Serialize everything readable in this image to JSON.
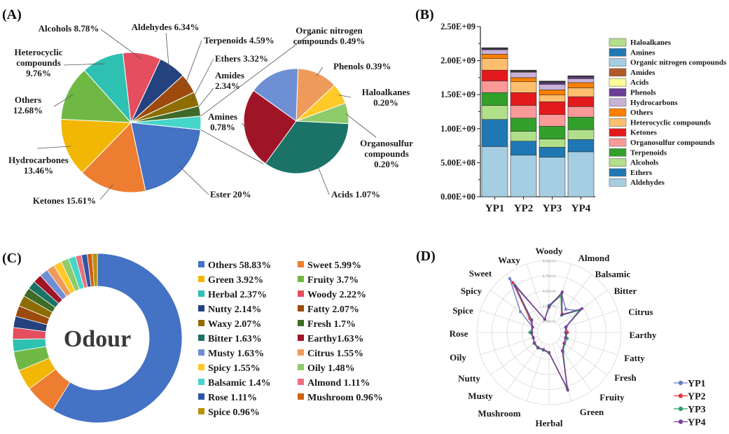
{
  "chart_data": [
    {
      "panel": "(A)",
      "type": "pie",
      "subtype": "bar-of-pie",
      "title": "",
      "main_slices": [
        {
          "name": "Ester",
          "label": "Ester 20%",
          "value": 20.0,
          "color": "#4472C4"
        },
        {
          "name": "Ketones",
          "label": "Ketones 15.61%",
          "value": 15.61,
          "color": "#ED7D31"
        },
        {
          "name": "Hydrocarbones",
          "label": "Hydrocarbones\n13.46%",
          "value": 13.46,
          "color": "#F2B705"
        },
        {
          "name": "Others",
          "label": "Others\n12.68%",
          "value": 12.68,
          "color": "#70B844"
        },
        {
          "name": "Heterocyclic compounds",
          "label": "Heterocyclic\ncompounds\n9.76%",
          "value": 9.76,
          "color": "#2EC1B2"
        },
        {
          "name": "Alcohols",
          "label": "Alcohols 8.78%",
          "value": 8.78,
          "color": "#E44E5F"
        },
        {
          "name": "Aldehydes",
          "label": "Aldehydes 6.34%",
          "value": 6.34,
          "color": "#24427E"
        },
        {
          "name": "Terpenoids",
          "label": "Terpenoids 4.59%",
          "value": 4.59,
          "color": "#9C4A0E"
        },
        {
          "name": "Ethers",
          "label": "Ethers 3.32%",
          "value": 3.32,
          "color": "#8E6D00"
        },
        {
          "name": "Amides",
          "label": "Amides\n2.34%",
          "value": 2.34,
          "color": "#3E6B27"
        },
        {
          "name": "Other (expanded)",
          "label": "",
          "value": 3.13,
          "color": "#45D6C9"
        }
      ],
      "secondary_slices": [
        {
          "name": "Phenols",
          "label": "Phenols 0.39%",
          "value": 0.39,
          "color": "#EE9A5A"
        },
        {
          "name": "Haloalkanes",
          "label": "Haloalkanes\n0.20%",
          "value": 0.2,
          "color": "#FFC928"
        },
        {
          "name": "Organosulfur compounds",
          "label": "Organosulfur\ncompounds\n0.20%",
          "value": 0.2,
          "color": "#8FCB6A"
        },
        {
          "name": "Acids",
          "label": "Acids 1.07%",
          "value": 1.07,
          "color": "#1B7368"
        },
        {
          "name": "Amines",
          "label": "Amines\n0.78%",
          "value": 0.78,
          "color": "#A01428"
        },
        {
          "name": "Organic nitrogen compounds",
          "label": "Organic nitrogen\ncompounds 0.49%",
          "value": 0.49,
          "color": "#6E8FD4"
        }
      ]
    },
    {
      "panel": "(B)",
      "type": "bar",
      "stacked": true,
      "title": "",
      "xlabel": "",
      "ylabel": "",
      "categories": [
        "YP1",
        "YP2",
        "YP3",
        "YP4"
      ],
      "ylim": [
        0,
        2500000000
      ],
      "yticks": [
        "0.00E+00",
        "5.00E+08",
        "1.00E+09",
        "1.50E+09",
        "2.00E+09",
        "2.50E+09"
      ],
      "series": [
        {
          "name": "Aldehydes",
          "color": "#A6CEE3",
          "values": [
            737000000,
            610000000,
            580000000,
            660000000
          ]
        },
        {
          "name": "Ethers",
          "color": "#1F78B4",
          "values": [
            398000000,
            206000000,
            147000000,
            180000000
          ]
        },
        {
          "name": "Alcohols",
          "color": "#B2DF8A",
          "values": [
            205000000,
            144000000,
            120000000,
            145000000
          ]
        },
        {
          "name": "Terpenoids",
          "color": "#33A02C",
          "values": [
            190000000,
            195000000,
            189000000,
            185000000
          ]
        },
        {
          "name": "Organosulfur compounds",
          "color": "#FB9A99",
          "values": [
            170000000,
            185000000,
            171000000,
            154000000
          ]
        },
        {
          "name": "Ketones",
          "color": "#E31A1C",
          "values": [
            160000000,
            190000000,
            189000000,
            146000000
          ]
        },
        {
          "name": "Heterocyclic compounds",
          "color": "#FDBF6F",
          "values": [
            170000000,
            160000000,
            99000000,
            130000000
          ]
        },
        {
          "name": "Others",
          "color": "#FF7F00",
          "values": [
            65000000,
            60000000,
            75000000,
            77000000
          ]
        },
        {
          "name": "Hydrocarbons",
          "color": "#CAB2D6",
          "values": [
            65000000,
            80000000,
            80000000,
            58000000
          ]
        },
        {
          "name": "Phenols",
          "color": "#6A3D9A",
          "values": [
            12000000,
            8000000,
            27000000,
            25000000
          ]
        },
        {
          "name": "Acids",
          "color": "#FFFF99",
          "values": [
            4000000,
            6000000,
            4000000,
            4000000
          ]
        },
        {
          "name": "Amides",
          "color": "#B15928",
          "values": [
            4000000,
            6000000,
            4000000,
            4000000
          ]
        },
        {
          "name": "Organic nitrogen compounds",
          "color": "#A6CEE3",
          "values": [
            3000000,
            3000000,
            5000000,
            3000000
          ]
        },
        {
          "name": "Amines",
          "color": "#1F78B4",
          "values": [
            3000000,
            3000000,
            5000000,
            3000000
          ]
        },
        {
          "name": "Haloalkanes",
          "color": "#B2DF8A",
          "values": [
            4000000,
            4000000,
            5000000,
            3000000
          ]
        }
      ],
      "legend": [
        "Haloalkanes",
        "Amines",
        "Organic nitrogen compounds",
        "Amides",
        "Acids",
        "Phenols",
        "Hydrocarbons",
        "Others",
        "Heterocyclic compounds",
        "Ketones",
        "Organosulfur compounds",
        "Terpenoids",
        "Alcohols",
        "Ethers",
        "Aldehydes"
      ],
      "legend_position": "right"
    },
    {
      "panel": "(C)",
      "type": "pie",
      "subtype": "donut",
      "center_label": "Odour",
      "slices": [
        {
          "name": "Others",
          "label": "Others 58.83%",
          "value": 58.83,
          "color": "#4472C4"
        },
        {
          "name": "Sweet",
          "label": "Sweet 5.99%",
          "value": 5.99,
          "color": "#ED7D31"
        },
        {
          "name": "Green",
          "label": "Green 3.92%",
          "value": 3.92,
          "color": "#F2B705"
        },
        {
          "name": "Fruity",
          "label": "Fruity 3.7%",
          "value": 3.7,
          "color": "#70B844"
        },
        {
          "name": "Herbal",
          "label": "Herbal 2.37%",
          "value": 2.37,
          "color": "#2EC1B2"
        },
        {
          "name": "Woody",
          "label": "Woody 2.22%",
          "value": 2.22,
          "color": "#E44E5F"
        },
        {
          "name": "Nutty",
          "label": "Nutty 2.14%",
          "value": 2.14,
          "color": "#24427E"
        },
        {
          "name": "Fatty",
          "label": "Fatty 2.07%",
          "value": 2.07,
          "color": "#9C4A0E"
        },
        {
          "name": "Waxy",
          "label": "Waxy 2.07%",
          "value": 2.07,
          "color": "#8E6D00"
        },
        {
          "name": "Fresh",
          "label": "Fresh 1.7%",
          "value": 1.7,
          "color": "#3E6B27"
        },
        {
          "name": "Bitter",
          "label": "Bitter 1.63%",
          "value": 1.63,
          "color": "#1B7368"
        },
        {
          "name": "Earthy",
          "label": "Earthy1.63%",
          "value": 1.63,
          "color": "#A01428"
        },
        {
          "name": "Musty",
          "label": "Musty 1.63%",
          "value": 1.63,
          "color": "#6E8FD4"
        },
        {
          "name": "Citrus",
          "label": "Citrus 1.55%",
          "value": 1.55,
          "color": "#EE9A5A"
        },
        {
          "name": "Spicy",
          "label": "Spicy 1.55%",
          "value": 1.55,
          "color": "#FFC928"
        },
        {
          "name": "Oily",
          "label": "Oily 1.48%",
          "value": 1.48,
          "color": "#8FCB6A"
        },
        {
          "name": "Balsamic",
          "label": "Balsamic 1.4%",
          "value": 1.4,
          "color": "#45D6C9"
        },
        {
          "name": "Almond",
          "label": "Almond 1.11%",
          "value": 1.11,
          "color": "#E8717F"
        },
        {
          "name": "Rose",
          "label": "Rose 1.11%",
          "value": 1.11,
          "color": "#2F55A4"
        },
        {
          "name": "Mushroom",
          "label": "Mushroom 0.96%",
          "value": 0.96,
          "color": "#D06010"
        },
        {
          "name": "Spice",
          "label": "Spice 0.96%",
          "value": 0.96,
          "color": "#B8900A"
        }
      ],
      "legend_position": "right"
    },
    {
      "panel": "(D)",
      "type": "radar",
      "axes": [
        "Woody",
        "Almond",
        "Balsamic",
        "Bitter",
        "Citrus",
        "Earthy",
        "Fatty",
        "Fresh",
        "Fruity",
        "Green",
        "Herbal",
        "Mushroom",
        "Musty",
        "Nutty",
        "Oily",
        "Rose",
        "Spice",
        "Spicy",
        "Sweet",
        "Waxy"
      ],
      "rlim": [
        0,
        9.0
      ],
      "rticks": [
        "0.00e+0",
        "2.25e+0",
        "4.50e+0",
        "6.75e+0",
        "9.00e+0"
      ],
      "series": [
        {
          "name": "YP1",
          "color": "#6A7BC4",
          "values": [
            2.3,
            4.3,
            2.5,
            3.8,
            0.8,
            0.7,
            0.8,
            1.0,
            1.6,
            7.0,
            1.2,
            0.9,
            1.0,
            0.9,
            0.7,
            0.8,
            0.8,
            3.5,
            8.2,
            0.3
          ]
        },
        {
          "name": "YP2",
          "color": "#E8333A",
          "values": [
            2.2,
            4.0,
            1.6,
            3.9,
            0.9,
            1.0,
            0.8,
            1.0,
            1.6,
            7.0,
            1.2,
            0.9,
            1.0,
            0.9,
            0.7,
            0.8,
            0.8,
            1.8,
            7.4,
            0.3
          ]
        },
        {
          "name": "YP3",
          "color": "#2E9E6A",
          "values": [
            2.2,
            4.0,
            1.4,
            3.9,
            0.9,
            0.7,
            1.1,
            1.1,
            1.8,
            7.0,
            1.3,
            1.0,
            1.1,
            1.0,
            0.7,
            1.1,
            0.8,
            1.6,
            7.0,
            0.3
          ]
        },
        {
          "name": "YP4",
          "color": "#7B3F99",
          "values": [
            2.0,
            4.6,
            1.5,
            4.3,
            0.9,
            0.7,
            0.8,
            1.0,
            1.6,
            7.3,
            1.2,
            0.9,
            1.0,
            0.9,
            0.7,
            0.8,
            0.8,
            1.4,
            6.8,
            0.3
          ]
        }
      ],
      "legend_position": "bottom-right"
    }
  ],
  "panels": {
    "a_label": "(A)",
    "b_label": "(B)",
    "c_label": "(C)",
    "d_label": "(D)"
  }
}
